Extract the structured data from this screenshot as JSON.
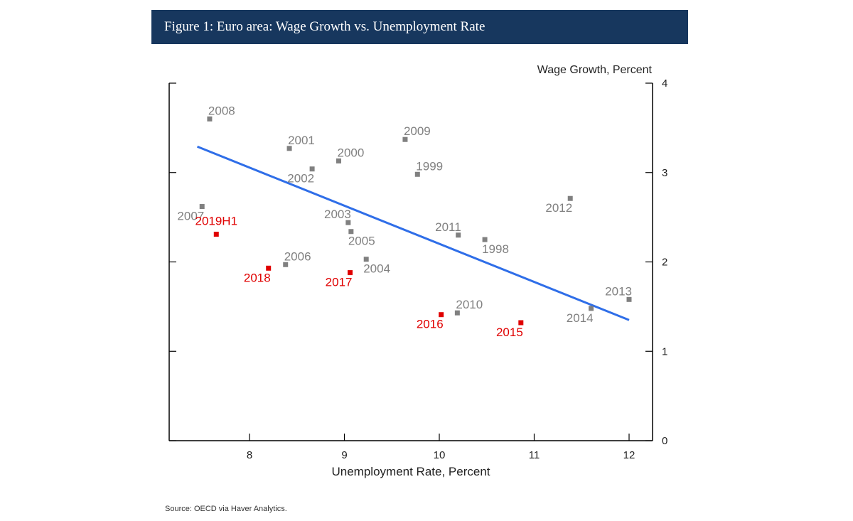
{
  "figure_title": "Figure 1: Euro area: Wage Growth vs. Unemployment Rate",
  "source": "Source: OECD via Haver Analytics.",
  "colors": {
    "banner": "#17375e",
    "historical": "#808080",
    "recent": "#e00000",
    "trend_line": "#2f6ee8",
    "axis": "#000000"
  },
  "chart_data": {
    "type": "scatter",
    "title": "",
    "xlabel": "Unemployment Rate, Percent",
    "ylabel": "Wage Growth, Percent",
    "xlim": [
      7.2,
      12.25
    ],
    "ylim": [
      0,
      4
    ],
    "xticks": [
      8,
      9,
      10,
      11,
      12
    ],
    "yticks": [
      0,
      1,
      2,
      3,
      4
    ],
    "y_axis_side": "right",
    "grid": false,
    "legend": "none",
    "points": [
      {
        "label": "1998",
        "x": 10.48,
        "y": 2.25,
        "group": "historical",
        "label_pos": "br"
      },
      {
        "label": "1999",
        "x": 9.77,
        "y": 2.98,
        "group": "historical",
        "label_pos": "tr"
      },
      {
        "label": "2000",
        "x": 8.94,
        "y": 3.13,
        "group": "historical",
        "label_pos": "tr"
      },
      {
        "label": "2001",
        "x": 8.42,
        "y": 3.27,
        "group": "historical",
        "label_pos": "tr"
      },
      {
        "label": "2002",
        "x": 8.66,
        "y": 3.04,
        "group": "historical",
        "label_pos": "bl"
      },
      {
        "label": "2003",
        "x": 9.04,
        "y": 2.44,
        "group": "historical",
        "label_pos": "tl"
      },
      {
        "label": "2004",
        "x": 9.23,
        "y": 2.03,
        "group": "historical",
        "label_pos": "br"
      },
      {
        "label": "2005",
        "x": 9.07,
        "y": 2.34,
        "group": "historical",
        "label_pos": "br"
      },
      {
        "label": "2006",
        "x": 8.38,
        "y": 1.97,
        "group": "historical",
        "label_pos": "tr"
      },
      {
        "label": "2007",
        "x": 7.5,
        "y": 2.62,
        "group": "historical",
        "label_pos": "bl"
      },
      {
        "label": "2008",
        "x": 7.58,
        "y": 3.6,
        "group": "historical",
        "label_pos": "tr"
      },
      {
        "label": "2009",
        "x": 9.64,
        "y": 3.37,
        "group": "historical",
        "label_pos": "tr"
      },
      {
        "label": "2010",
        "x": 10.19,
        "y": 1.43,
        "group": "historical",
        "label_pos": "tr"
      },
      {
        "label": "2011",
        "x": 10.2,
        "y": 2.3,
        "group": "historical",
        "label_pos": "tl"
      },
      {
        "label": "2012",
        "x": 11.38,
        "y": 2.71,
        "group": "historical",
        "label_pos": "bl"
      },
      {
        "label": "2013",
        "x": 12.0,
        "y": 1.58,
        "group": "historical",
        "label_pos": "tl"
      },
      {
        "label": "2014",
        "x": 11.6,
        "y": 1.48,
        "group": "historical",
        "label_pos": "bl"
      },
      {
        "label": "2015",
        "x": 10.86,
        "y": 1.32,
        "group": "recent",
        "label_pos": "bl"
      },
      {
        "label": "2016",
        "x": 10.02,
        "y": 1.41,
        "group": "recent",
        "label_pos": "bl"
      },
      {
        "label": "2017",
        "x": 9.06,
        "y": 1.88,
        "group": "recent",
        "label_pos": "bl"
      },
      {
        "label": "2018",
        "x": 8.2,
        "y": 1.93,
        "group": "recent",
        "label_pos": "bl"
      },
      {
        "label": "2019H1",
        "x": 7.65,
        "y": 2.31,
        "group": "recent",
        "label_pos": "tc"
      }
    ],
    "trend_line": {
      "x": [
        7.45,
        12.0
      ],
      "y": [
        3.29,
        1.35
      ]
    }
  }
}
